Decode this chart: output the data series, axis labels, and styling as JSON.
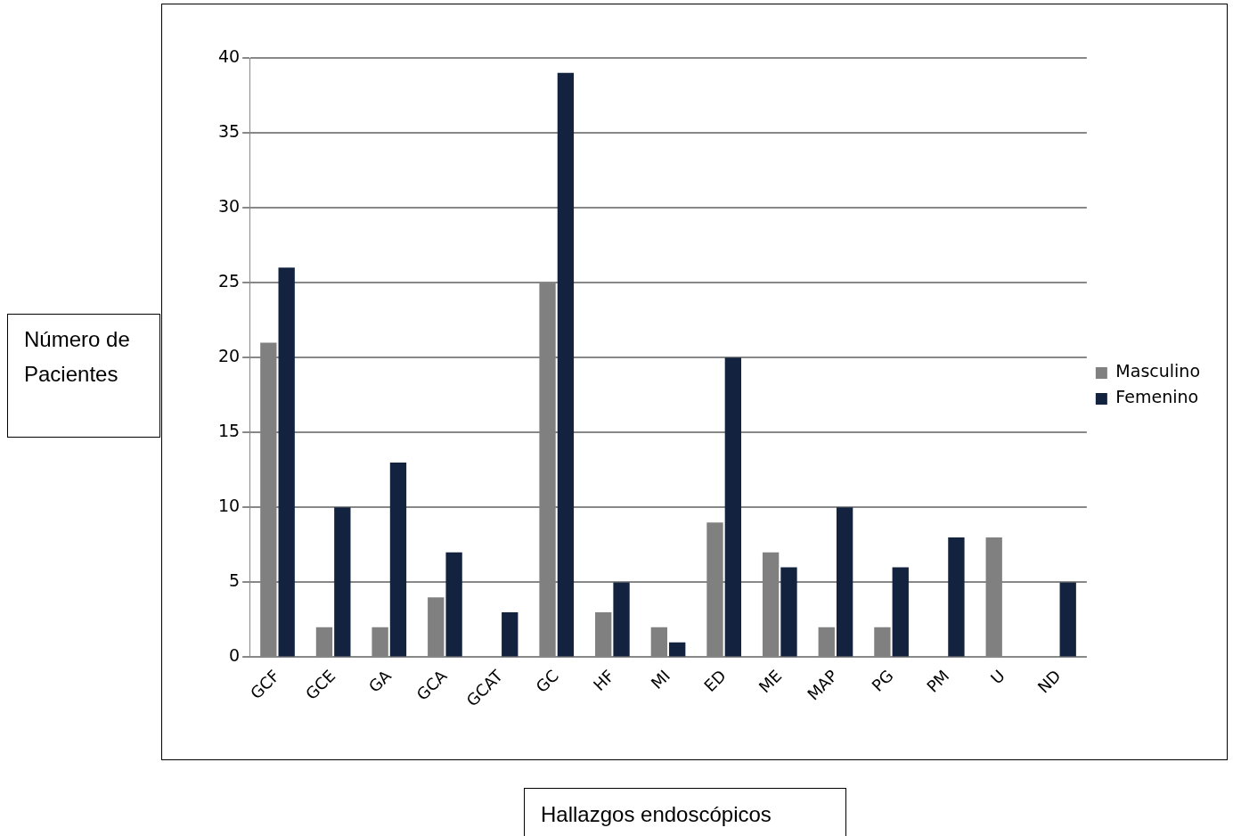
{
  "chart_data": {
    "type": "bar",
    "xlabel": "Hallazgos endoscópicos",
    "ylabel": "Número de Pacientes",
    "categories": [
      "GCF",
      "GCE",
      "GA",
      "GCA",
      "GCAT",
      "GC",
      "HF",
      "MI",
      "ED",
      "ME",
      "MAP",
      "PG",
      "PM",
      "U",
      "ND"
    ],
    "series": [
      {
        "name": "Masculino",
        "color": "#808080",
        "values": [
          21,
          2,
          2,
          4,
          0,
          25,
          3,
          2,
          9,
          7,
          2,
          2,
          0,
          8,
          0
        ]
      },
      {
        "name": "Femenino",
        "color": "#13233f",
        "values": [
          26,
          10,
          13,
          7,
          3,
          39,
          5,
          1,
          20,
          6,
          10,
          6,
          8,
          0,
          5
        ]
      }
    ],
    "ylim": [
      0,
      40
    ],
    "yticks": [
      0,
      5,
      10,
      15,
      20,
      25,
      30,
      35,
      40
    ],
    "grid": "y",
    "legend": "right"
  }
}
